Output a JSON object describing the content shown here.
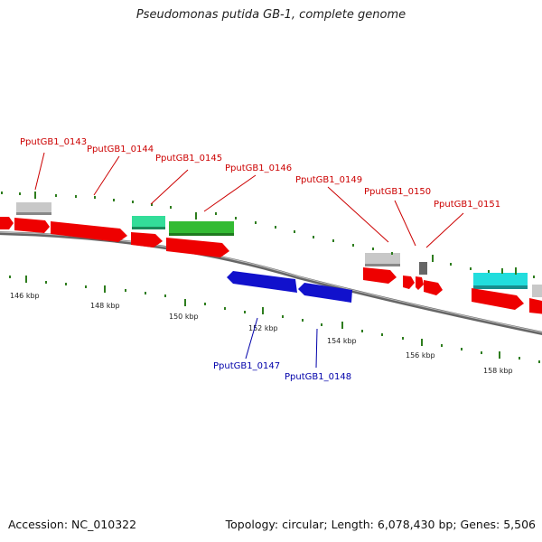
{
  "title": "Pseudomonas putida GB-1, complete genome",
  "footer": {
    "accession": "Accession: NC_010322",
    "summary": "Topology: circular; Length: 6,078,430 bp; Genes: 5,506"
  },
  "colors": {
    "forward_label": "#cc0000",
    "reverse_label": "#0000aa",
    "backbone": "#888888",
    "tick": "#2e7d1e"
  },
  "tick_labels": [
    "146 kbp",
    "148 kbp",
    "150 kbp",
    "152 kbp",
    "154 kbp",
    "156 kbp",
    "158 kbp"
  ],
  "gene_labels": [
    {
      "id": "PputGB1_0143",
      "strand": "+"
    },
    {
      "id": "PputGB1_0144",
      "strand": "+"
    },
    {
      "id": "PputGB1_0145",
      "strand": "+"
    },
    {
      "id": "PputGB1_0146",
      "strand": "+"
    },
    {
      "id": "PputGB1_0149",
      "strand": "+"
    },
    {
      "id": "PputGB1_0150",
      "strand": "+"
    },
    {
      "id": "PputGB1_0151",
      "strand": "+"
    },
    {
      "id": "PputGB1_0147",
      "strand": "-"
    },
    {
      "id": "PputGB1_0148",
      "strand": "-"
    }
  ],
  "legend_color_names": [
    "red",
    "grey",
    "green",
    "cyan",
    "blue"
  ]
}
